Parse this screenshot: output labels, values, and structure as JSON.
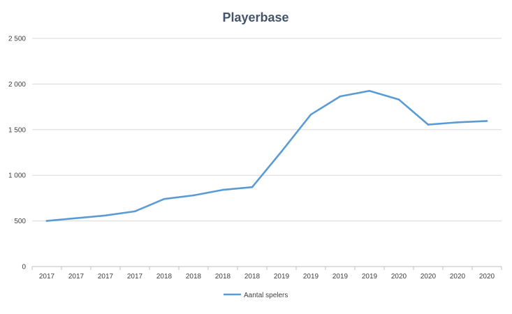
{
  "chart_data": {
    "type": "line",
    "title": "Playerbase",
    "xlabel": "",
    "ylabel": "",
    "categories": [
      "2017",
      "2017",
      "2017",
      "2017",
      "2018",
      "2018",
      "2018",
      "2018",
      "2019",
      "2019",
      "2019",
      "2019",
      "2020",
      "2020",
      "2020",
      "2020"
    ],
    "series": [
      {
        "name": "Aantal spelers",
        "color": "#5b9bd5",
        "values": [
          500,
          530,
          560,
          605,
          740,
          780,
          840,
          870,
          1260,
          1665,
          1865,
          1925,
          1830,
          1555,
          1580,
          1595
        ]
      }
    ],
    "ylim": [
      0,
      2500
    ],
    "yticks": [
      {
        "value": 0,
        "label": "0"
      },
      {
        "value": 500,
        "label": "500"
      },
      {
        "value": 1000,
        "label": "1 000"
      },
      {
        "value": 1500,
        "label": "1 500"
      },
      {
        "value": 2000,
        "label": "2 000"
      },
      {
        "value": 2500,
        "label": "2 500"
      }
    ],
    "grid": true,
    "legend_position": "bottom"
  }
}
